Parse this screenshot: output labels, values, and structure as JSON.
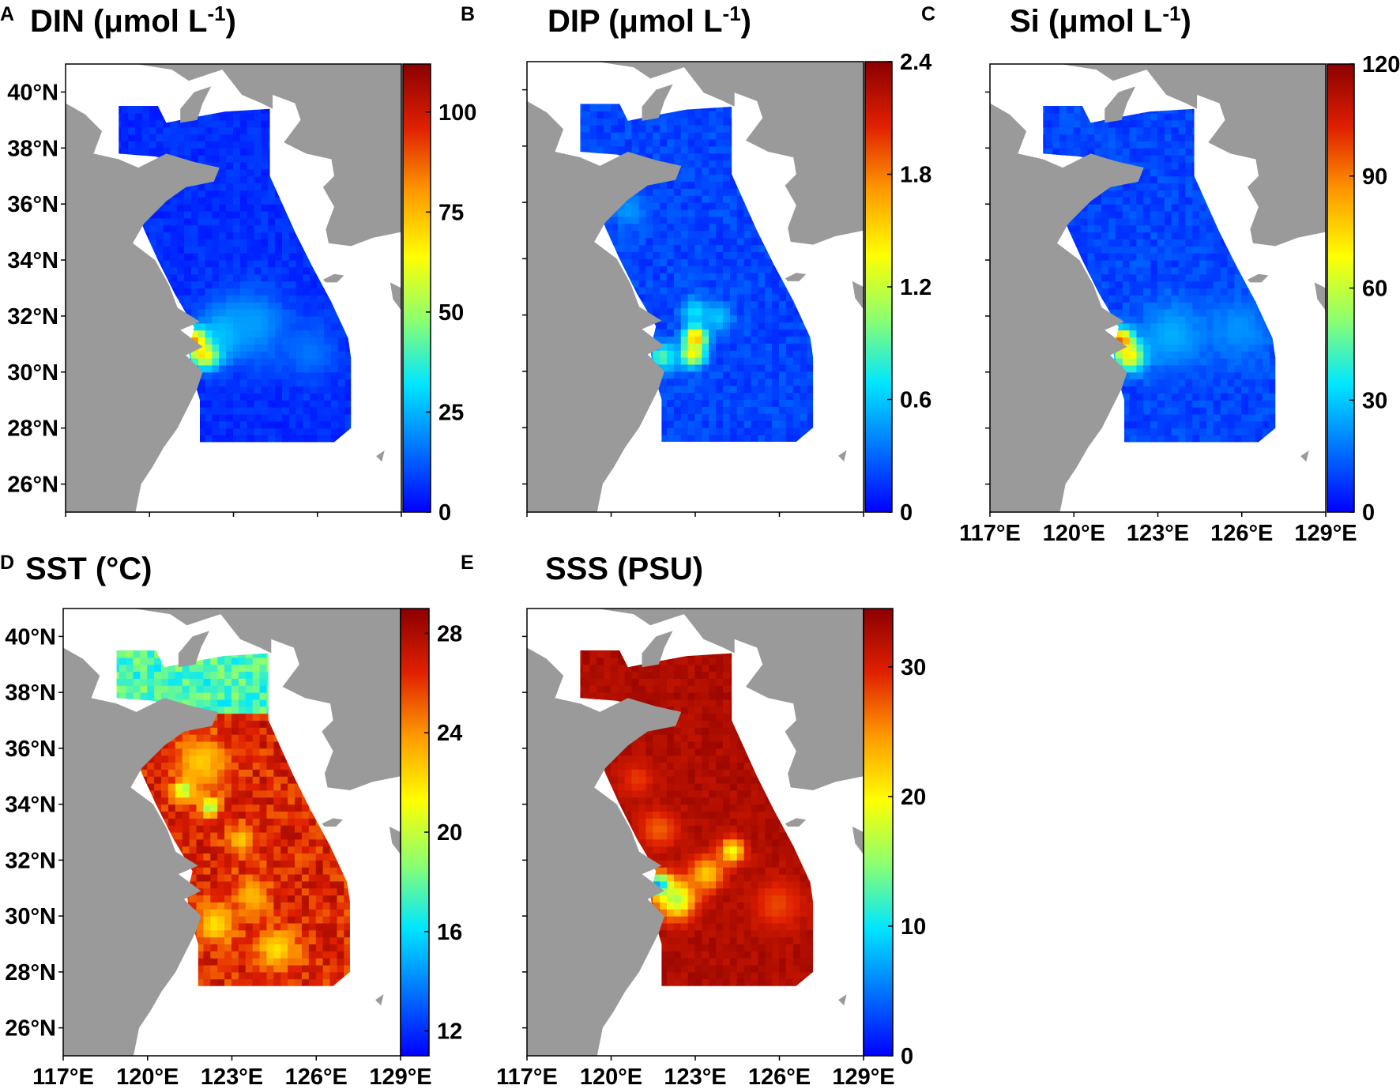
{
  "figure": {
    "colormap": [
      "#0000ff",
      "#0074ff",
      "#00e6ff",
      "#8cff70",
      "#ffff00",
      "#ff9a00",
      "#e02000",
      "#8b0000"
    ],
    "land_color": "#9a9a9a",
    "sea_color": "#ffffff"
  },
  "chart_data": [
    {
      "id": "A",
      "letter": "A",
      "type": "heatmap",
      "title_main": "DIN (μmol L",
      "title_sup": "-1",
      "title_end": ")",
      "colorbar": {
        "ticks": [
          0,
          25,
          50,
          75,
          100
        ],
        "range": [
          0,
          112
        ]
      },
      "xticks": [
        "117°E",
        "120°E",
        "123°E",
        "126°E",
        "129°E"
      ],
      "show_xtick_labels": false,
      "yticks": [
        "40°N",
        "38°N",
        "36°N",
        "34°N",
        "32°N",
        "30°N",
        "28°N",
        "26°N"
      ],
      "show_ytick_labels": true,
      "xlim": [
        117,
        129
      ],
      "ylim": [
        25,
        41
      ],
      "field": {
        "background": 6,
        "bg_jitter": 3,
        "hotspots": [
          {
            "lon": 121.6,
            "lat": 31.0,
            "value": 108,
            "radius": 0.4
          },
          {
            "lon": 121.9,
            "lat": 30.6,
            "value": 85,
            "radius": 0.55
          },
          {
            "lon": 122.6,
            "lat": 31.3,
            "value": 30,
            "radius": 0.9
          },
          {
            "lon": 123.6,
            "lat": 31.6,
            "value": 22,
            "radius": 1.2
          },
          {
            "lon": 125.6,
            "lat": 30.6,
            "value": 16,
            "radius": 1.0
          }
        ]
      }
    },
    {
      "id": "B",
      "letter": "B",
      "type": "heatmap",
      "title_main": "DIP (μmol L",
      "title_sup": "-1",
      "title_end": ")",
      "colorbar": {
        "ticks": [
          "0",
          "0.6",
          "1.2",
          "1.8",
          "2.4"
        ],
        "range": [
          0,
          2.4
        ]
      },
      "xticks": [
        "117°E",
        "120°E",
        "123°E",
        "126°E",
        "129°E"
      ],
      "show_xtick_labels": false,
      "yticks": [
        "40°N",
        "38°N",
        "36°N",
        "34°N",
        "32°N",
        "30°N",
        "28°N",
        "26°N"
      ],
      "show_ytick_labels": false,
      "xlim": [
        117,
        129
      ],
      "ylim": [
        25,
        41
      ],
      "field": {
        "background": 0.2,
        "bg_jitter": 0.08,
        "hotspots": [
          {
            "lon": 122.9,
            "lat": 31.1,
            "value": 1.8,
            "radius": 0.4
          },
          {
            "lon": 122.8,
            "lat": 30.5,
            "value": 1.4,
            "radius": 0.45
          },
          {
            "lon": 121.7,
            "lat": 30.4,
            "value": 0.9,
            "radius": 0.5
          },
          {
            "lon": 122.9,
            "lat": 32.0,
            "value": 0.7,
            "radius": 0.5
          },
          {
            "lon": 123.7,
            "lat": 31.8,
            "value": 0.6,
            "radius": 0.5
          },
          {
            "lon": 120.5,
            "lat": 35.6,
            "value": 0.45,
            "radius": 0.6
          }
        ]
      }
    },
    {
      "id": "C",
      "letter": "C",
      "type": "heatmap",
      "title_main": "Si (μmol L",
      "title_sup": "-1",
      "title_end": ")",
      "colorbar": {
        "ticks": [
          0,
          30,
          60,
          90,
          120
        ],
        "range": [
          0,
          120
        ]
      },
      "xticks": [
        "117°E",
        "120°E",
        "123°E",
        "126°E",
        "129°E"
      ],
      "show_xtick_labels": true,
      "yticks": [
        "40°N",
        "38°N",
        "36°N",
        "34°N",
        "32°N",
        "30°N",
        "28°N",
        "26°N"
      ],
      "show_ytick_labels": false,
      "xlim": [
        117,
        129
      ],
      "ylim": [
        25,
        41
      ],
      "field": {
        "background": 10,
        "bg_jitter": 4,
        "hotspots": [
          {
            "lon": 121.6,
            "lat": 31.0,
            "value": 112,
            "radius": 0.4
          },
          {
            "lon": 121.9,
            "lat": 30.5,
            "value": 80,
            "radius": 0.55
          },
          {
            "lon": 123.4,
            "lat": 31.2,
            "value": 26,
            "radius": 1.2
          },
          {
            "lon": 125.8,
            "lat": 31.4,
            "value": 22,
            "radius": 1.1
          }
        ]
      }
    },
    {
      "id": "D",
      "letter": "D",
      "type": "heatmap",
      "title_main": "SST (°C)",
      "title_sup": "",
      "title_end": "",
      "colorbar": {
        "ticks": [
          12,
          16,
          20,
          24,
          28
        ],
        "range": [
          11,
          29
        ]
      },
      "xticks": [
        "117°E",
        "120°E",
        "123°E",
        "126°E",
        "129°E"
      ],
      "show_xtick_labels": true,
      "yticks": [
        "40°N",
        "38°N",
        "36°N",
        "34°N",
        "32°N",
        "30°N",
        "28°N",
        "26°N"
      ],
      "show_ytick_labels": true,
      "xlim": [
        117,
        129
      ],
      "ylim": [
        25,
        41
      ],
      "field": {
        "background": 26.5,
        "bg_jitter": 1.5,
        "north_value": 17.5,
        "north_lat": 37.0,
        "hotspots": [
          {
            "lon": 121.2,
            "lat": 34.4,
            "value": 18,
            "radius": 0.35
          },
          {
            "lon": 122.1,
            "lat": 33.8,
            "value": 18.5,
            "radius": 0.35
          },
          {
            "lon": 122.3,
            "lat": 29.6,
            "value": 22,
            "radius": 0.7
          },
          {
            "lon": 124.5,
            "lat": 28.7,
            "value": 22,
            "radius": 0.7
          },
          {
            "lon": 123.6,
            "lat": 30.6,
            "value": 23,
            "radius": 0.6
          },
          {
            "lon": 121.8,
            "lat": 35.4,
            "value": 22.5,
            "radius": 0.9
          },
          {
            "lon": 123.2,
            "lat": 32.6,
            "value": 22.5,
            "radius": 0.5
          }
        ]
      }
    },
    {
      "id": "E",
      "letter": "E",
      "type": "heatmap",
      "title_main": "SSS (PSU)",
      "title_sup": "",
      "title_end": "",
      "colorbar": {
        "ticks": [
          0,
          10,
          20,
          30
        ],
        "range": [
          0,
          34.5
        ]
      },
      "xticks": [
        "117°E",
        "120°E",
        "123°E",
        "126°E",
        "129°E"
      ],
      "show_xtick_labels": true,
      "yticks": [
        "40°N",
        "38°N",
        "36°N",
        "34°N",
        "32°N",
        "30°N",
        "28°N",
        "26°N"
      ],
      "show_ytick_labels": false,
      "xlim": [
        117,
        129
      ],
      "ylim": [
        25,
        41
      ],
      "field": {
        "background": 32.5,
        "bg_jitter": 1.0,
        "hotspots": [
          {
            "lon": 121.6,
            "lat": 31.0,
            "value": 3,
            "radius": 0.4
          },
          {
            "lon": 122.2,
            "lat": 30.5,
            "value": 16,
            "radius": 0.7
          },
          {
            "lon": 123.3,
            "lat": 31.4,
            "value": 22,
            "radius": 0.6
          },
          {
            "lon": 124.2,
            "lat": 32.2,
            "value": 19,
            "radius": 0.45
          },
          {
            "lon": 121.6,
            "lat": 33.0,
            "value": 27,
            "radius": 0.7
          },
          {
            "lon": 125.8,
            "lat": 30.3,
            "value": 28,
            "radius": 0.9
          },
          {
            "lon": 120.8,
            "lat": 34.8,
            "value": 28.5,
            "radius": 0.6
          }
        ]
      }
    }
  ]
}
